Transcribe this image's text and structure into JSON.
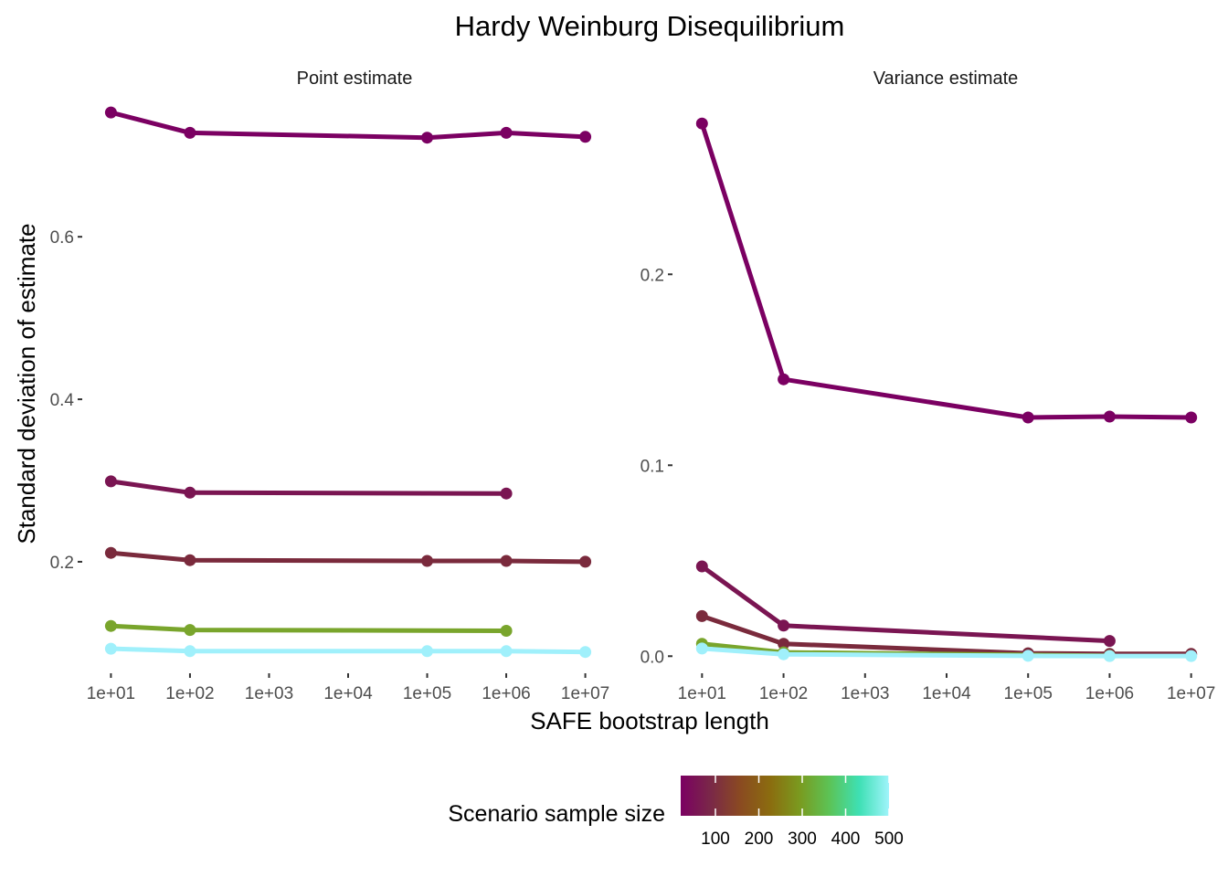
{
  "chart_data": {
    "type": "line",
    "title": "Hardy Weinburg Disequilibrium",
    "xlabel": "SAFE bootstrap length",
    "ylabel": "Standard deviation of estimate",
    "x_scale": "log10",
    "x_ticks": [
      10,
      100,
      1000,
      10000,
      100000,
      1000000,
      10000000
    ],
    "x_tick_labels": [
      "1e+01",
      "1e+02",
      "1e+03",
      "1e+04",
      "1e+05",
      "1e+06",
      "1e+07"
    ],
    "grid": false,
    "legend": {
      "title": "Scenario sample size",
      "position": "bottom",
      "type": "colorbar",
      "range": [
        20,
        500
      ],
      "labels": [
        "100",
        "200",
        "300",
        "400",
        "500"
      ],
      "label_values": [
        100,
        200,
        300,
        400,
        500
      ],
      "color_stops": [
        "#7b0062",
        "#7a2848",
        "#8a4a21",
        "#8b6c0f",
        "#7a9a1f",
        "#5cc356",
        "#3ee0b4",
        "#a0f4fb"
      ]
    },
    "panels": [
      {
        "label": "Point estimate",
        "ylim": [
          0.065,
          0.77
        ],
        "y_ticks": [
          0.2,
          0.4,
          0.6
        ],
        "y_tick_labels": [
          "0.2",
          "0.4",
          "0.6"
        ],
        "series": [
          {
            "sample_size": 20,
            "color": "#7b0062",
            "x": [
              10,
              100,
              100000,
              1000000,
              10000000
            ],
            "y": [
              0.753,
              0.728,
              0.722,
              0.728,
              0.723
            ]
          },
          {
            "sample_size": 50,
            "color": "#7a1552",
            "x": [
              10,
              100,
              1000000
            ],
            "y": [
              0.299,
              0.285,
              0.284
            ]
          },
          {
            "sample_size": 100,
            "color": "#7a2a3c",
            "x": [
              10,
              100,
              100000,
              1000000,
              10000000
            ],
            "y": [
              0.211,
              0.202,
              0.201,
              0.201,
              0.2
            ]
          },
          {
            "sample_size": 300,
            "color": "#79a52c",
            "x": [
              10,
              100,
              1000000
            ],
            "y": [
              0.121,
              0.116,
              0.115
            ]
          },
          {
            "sample_size": 500,
            "color": "#a0f0fb",
            "x": [
              10,
              100,
              100000,
              1000000,
              10000000
            ],
            "y": [
              0.093,
              0.09,
              0.09,
              0.09,
              0.089
            ]
          }
        ]
      },
      {
        "label": "Variance estimate",
        "ylim": [
          -0.008,
          0.292
        ],
        "y_ticks": [
          0.0,
          0.1,
          0.2
        ],
        "y_tick_labels": [
          "0.0",
          "0.1",
          "0.2"
        ],
        "series": [
          {
            "sample_size": 20,
            "color": "#7b0062",
            "x": [
              10,
              100,
              100000,
              1000000,
              10000000
            ],
            "y": [
              0.279,
              0.145,
              0.125,
              0.1255,
              0.125
            ]
          },
          {
            "sample_size": 50,
            "color": "#7a1552",
            "x": [
              10,
              100,
              1000000
            ],
            "y": [
              0.047,
              0.016,
              0.008
            ]
          },
          {
            "sample_size": 100,
            "color": "#7a2a3c",
            "x": [
              10,
              100,
              100000,
              1000000,
              10000000
            ],
            "y": [
              0.021,
              0.0065,
              0.0015,
              0.0012,
              0.0012
            ]
          },
          {
            "sample_size": 300,
            "color": "#79a52c",
            "x": [
              10,
              100,
              1000000
            ],
            "y": [
              0.0065,
              0.002,
              0.0002
            ]
          },
          {
            "sample_size": 500,
            "color": "#a0f0fb",
            "x": [
              10,
              100,
              100000,
              1000000,
              10000000
            ],
            "y": [
              0.004,
              0.001,
              0.0002,
              0.0001,
              0.0001
            ]
          }
        ]
      }
    ]
  }
}
